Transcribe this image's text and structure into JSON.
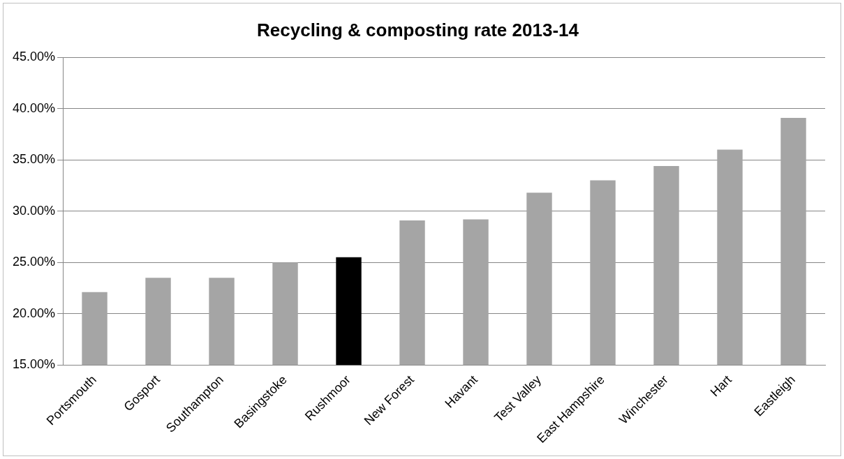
{
  "chart_data": {
    "type": "bar",
    "title": "Recycling & composting rate 2013-14",
    "categories": [
      "Portsmouth",
      "Gosport",
      "Southampton",
      "Basingstoke",
      "Rushmoor",
      "New Forest",
      "Havant",
      "Test Valley",
      "East Hampshire",
      "Winchester",
      "Hart",
      "Eastleigh"
    ],
    "values": [
      22.1,
      23.5,
      23.5,
      25.0,
      25.5,
      29.1,
      29.2,
      31.8,
      33.0,
      34.4,
      36.0,
      39.1
    ],
    "colors": [
      "#a5a5a5",
      "#a5a5a5",
      "#a5a5a5",
      "#a5a5a5",
      "#000000",
      "#a5a5a5",
      "#a5a5a5",
      "#a5a5a5",
      "#a5a5a5",
      "#a5a5a5",
      "#a5a5a5",
      "#a5a5a5"
    ],
    "ylim": [
      15,
      45
    ],
    "yticks": [
      {
        "value": 15,
        "label": "15.00%"
      },
      {
        "value": 20,
        "label": "20.00%"
      },
      {
        "value": 25,
        "label": "25.00%"
      },
      {
        "value": 30,
        "label": "30.00%"
      },
      {
        "value": 35,
        "label": "35.00%"
      },
      {
        "value": 40,
        "label": "40.00%"
      },
      {
        "value": 45,
        "label": "45.00%"
      }
    ],
    "grid": "y",
    "legend": false
  }
}
